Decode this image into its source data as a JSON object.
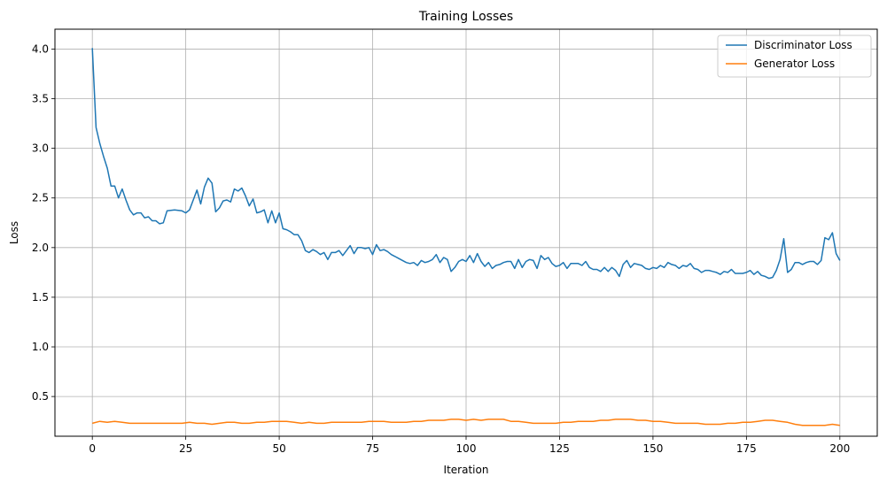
{
  "chart_data": {
    "type": "line",
    "title": "Training Losses",
    "xlabel": "Iteration",
    "ylabel": "Loss",
    "xlim": [
      -10,
      210
    ],
    "ylim": [
      0.1,
      4.2
    ],
    "xticks": [
      0,
      25,
      50,
      75,
      100,
      125,
      150,
      175,
      200
    ],
    "yticks": [
      0.5,
      1.0,
      1.5,
      2.0,
      2.5,
      3.0,
      3.5,
      4.0
    ],
    "xtick_labels": [
      "0",
      "25",
      "50",
      "75",
      "100",
      "125",
      "150",
      "175",
      "200"
    ],
    "ytick_labels": [
      "0.5",
      "1.0",
      "1.5",
      "2.0",
      "2.5",
      "3.0",
      "3.5",
      "4.0"
    ],
    "grid": true,
    "legend_position": "top-right",
    "series": [
      {
        "name": "Discriminator Loss",
        "color": "#1f77b4",
        "points": [
          [
            0,
            4.01
          ],
          [
            1,
            3.21
          ],
          [
            2,
            3.05
          ],
          [
            3,
            2.92
          ],
          [
            4,
            2.8
          ],
          [
            5,
            2.62
          ],
          [
            6,
            2.62
          ],
          [
            7,
            2.5
          ],
          [
            8,
            2.59
          ],
          [
            9,
            2.48
          ],
          [
            10,
            2.38
          ],
          [
            11,
            2.33
          ],
          [
            12,
            2.35
          ],
          [
            13,
            2.35
          ],
          [
            14,
            2.3
          ],
          [
            15,
            2.31
          ],
          [
            16,
            2.27
          ],
          [
            17,
            2.27
          ],
          [
            18,
            2.24
          ],
          [
            19,
            2.25
          ],
          [
            20,
            2.37
          ],
          [
            22,
            2.38
          ],
          [
            24,
            2.37
          ],
          [
            25,
            2.35
          ],
          [
            26,
            2.38
          ],
          [
            27,
            2.48
          ],
          [
            28,
            2.58
          ],
          [
            29,
            2.44
          ],
          [
            30,
            2.61
          ],
          [
            31,
            2.7
          ],
          [
            32,
            2.65
          ],
          [
            33,
            2.36
          ],
          [
            34,
            2.4
          ],
          [
            35,
            2.47
          ],
          [
            36,
            2.48
          ],
          [
            37,
            2.46
          ],
          [
            38,
            2.59
          ],
          [
            39,
            2.57
          ],
          [
            40,
            2.6
          ],
          [
            41,
            2.52
          ],
          [
            42,
            2.42
          ],
          [
            43,
            2.49
          ],
          [
            44,
            2.35
          ],
          [
            45,
            2.36
          ],
          [
            46,
            2.38
          ],
          [
            47,
            2.25
          ],
          [
            48,
            2.37
          ],
          [
            49,
            2.25
          ],
          [
            50,
            2.35
          ],
          [
            51,
            2.19
          ],
          [
            52,
            2.18
          ],
          [
            53,
            2.16
          ],
          [
            54,
            2.13
          ],
          [
            55,
            2.13
          ],
          [
            56,
            2.07
          ],
          [
            57,
            1.97
          ],
          [
            58,
            1.95
          ],
          [
            59,
            1.98
          ],
          [
            60,
            1.96
          ],
          [
            61,
            1.93
          ],
          [
            62,
            1.95
          ],
          [
            63,
            1.88
          ],
          [
            64,
            1.95
          ],
          [
            65,
            1.95
          ],
          [
            66,
            1.97
          ],
          [
            67,
            1.92
          ],
          [
            68,
            1.97
          ],
          [
            69,
            2.02
          ],
          [
            70,
            1.94
          ],
          [
            71,
            2.0
          ],
          [
            72,
            2.0
          ],
          [
            73,
            1.99
          ],
          [
            74,
            2.0
          ],
          [
            75,
            1.93
          ],
          [
            76,
            2.03
          ],
          [
            77,
            1.97
          ],
          [
            78,
            1.98
          ],
          [
            79,
            1.96
          ],
          [
            80,
            1.93
          ],
          [
            81,
            1.91
          ],
          [
            82,
            1.89
          ],
          [
            83,
            1.87
          ],
          [
            84,
            1.85
          ],
          [
            85,
            1.84
          ],
          [
            86,
            1.85
          ],
          [
            87,
            1.82
          ],
          [
            88,
            1.87
          ],
          [
            89,
            1.85
          ],
          [
            90,
            1.86
          ],
          [
            91,
            1.88
          ],
          [
            92,
            1.93
          ],
          [
            93,
            1.85
          ],
          [
            94,
            1.9
          ],
          [
            95,
            1.88
          ],
          [
            96,
            1.76
          ],
          [
            97,
            1.8
          ],
          [
            98,
            1.86
          ],
          [
            99,
            1.88
          ],
          [
            100,
            1.86
          ],
          [
            101,
            1.92
          ],
          [
            102,
            1.85
          ],
          [
            103,
            1.94
          ],
          [
            104,
            1.86
          ],
          [
            105,
            1.81
          ],
          [
            106,
            1.85
          ],
          [
            107,
            1.79
          ],
          [
            108,
            1.82
          ],
          [
            109,
            1.83
          ],
          [
            110,
            1.85
          ],
          [
            111,
            1.86
          ],
          [
            112,
            1.86
          ],
          [
            113,
            1.79
          ],
          [
            114,
            1.88
          ],
          [
            115,
            1.8
          ],
          [
            116,
            1.86
          ],
          [
            117,
            1.88
          ],
          [
            118,
            1.87
          ],
          [
            119,
            1.79
          ],
          [
            120,
            1.92
          ],
          [
            121,
            1.88
          ],
          [
            122,
            1.9
          ],
          [
            123,
            1.84
          ],
          [
            124,
            1.81
          ],
          [
            125,
            1.82
          ],
          [
            126,
            1.85
          ],
          [
            127,
            1.79
          ],
          [
            128,
            1.84
          ],
          [
            129,
            1.84
          ],
          [
            130,
            1.84
          ],
          [
            131,
            1.82
          ],
          [
            132,
            1.86
          ],
          [
            133,
            1.8
          ],
          [
            134,
            1.78
          ],
          [
            135,
            1.78
          ],
          [
            136,
            1.76
          ],
          [
            137,
            1.8
          ],
          [
            138,
            1.76
          ],
          [
            139,
            1.8
          ],
          [
            140,
            1.77
          ],
          [
            141,
            1.71
          ],
          [
            142,
            1.83
          ],
          [
            143,
            1.87
          ],
          [
            144,
            1.8
          ],
          [
            145,
            1.84
          ],
          [
            146,
            1.83
          ],
          [
            147,
            1.82
          ],
          [
            148,
            1.79
          ],
          [
            149,
            1.78
          ],
          [
            150,
            1.8
          ],
          [
            151,
            1.79
          ],
          [
            152,
            1.82
          ],
          [
            153,
            1.8
          ],
          [
            154,
            1.85
          ],
          [
            155,
            1.83
          ],
          [
            156,
            1.82
          ],
          [
            157,
            1.79
          ],
          [
            158,
            1.82
          ],
          [
            159,
            1.81
          ],
          [
            160,
            1.84
          ],
          [
            161,
            1.79
          ],
          [
            162,
            1.78
          ],
          [
            163,
            1.75
          ],
          [
            164,
            1.77
          ],
          [
            165,
            1.77
          ],
          [
            166,
            1.76
          ],
          [
            167,
            1.75
          ],
          [
            168,
            1.73
          ],
          [
            169,
            1.76
          ],
          [
            170,
            1.75
          ],
          [
            171,
            1.78
          ],
          [
            172,
            1.74
          ],
          [
            173,
            1.74
          ],
          [
            174,
            1.74
          ],
          [
            175,
            1.75
          ],
          [
            176,
            1.77
          ],
          [
            177,
            1.73
          ],
          [
            178,
            1.76
          ],
          [
            179,
            1.72
          ],
          [
            180,
            1.71
          ],
          [
            181,
            1.69
          ],
          [
            182,
            1.7
          ],
          [
            183,
            1.77
          ],
          [
            184,
            1.88
          ],
          [
            185,
            2.09
          ],
          [
            186,
            1.75
          ],
          [
            187,
            1.78
          ],
          [
            188,
            1.85
          ],
          [
            189,
            1.85
          ],
          [
            190,
            1.83
          ],
          [
            191,
            1.85
          ],
          [
            192,
            1.86
          ],
          [
            193,
            1.86
          ],
          [
            194,
            1.83
          ],
          [
            195,
            1.87
          ],
          [
            196,
            2.1
          ],
          [
            197,
            2.08
          ],
          [
            198,
            2.15
          ],
          [
            199,
            1.94
          ],
          [
            200,
            1.87
          ]
        ]
      },
      {
        "name": "Generator Loss",
        "color": "#ff7f0e",
        "points": [
          [
            0,
            0.23
          ],
          [
            2,
            0.25
          ],
          [
            4,
            0.24
          ],
          [
            6,
            0.25
          ],
          [
            8,
            0.24
          ],
          [
            10,
            0.23
          ],
          [
            12,
            0.23
          ],
          [
            14,
            0.23
          ],
          [
            16,
            0.23
          ],
          [
            18,
            0.23
          ],
          [
            20,
            0.23
          ],
          [
            22,
            0.23
          ],
          [
            24,
            0.23
          ],
          [
            26,
            0.24
          ],
          [
            28,
            0.23
          ],
          [
            30,
            0.23
          ],
          [
            32,
            0.22
          ],
          [
            34,
            0.23
          ],
          [
            36,
            0.24
          ],
          [
            38,
            0.24
          ],
          [
            40,
            0.23
          ],
          [
            42,
            0.23
          ],
          [
            44,
            0.24
          ],
          [
            46,
            0.24
          ],
          [
            48,
            0.25
          ],
          [
            50,
            0.25
          ],
          [
            52,
            0.25
          ],
          [
            54,
            0.24
          ],
          [
            56,
            0.23
          ],
          [
            58,
            0.24
          ],
          [
            60,
            0.23
          ],
          [
            62,
            0.23
          ],
          [
            64,
            0.24
          ],
          [
            66,
            0.24
          ],
          [
            68,
            0.24
          ],
          [
            70,
            0.24
          ],
          [
            72,
            0.24
          ],
          [
            74,
            0.25
          ],
          [
            76,
            0.25
          ],
          [
            78,
            0.25
          ],
          [
            80,
            0.24
          ],
          [
            82,
            0.24
          ],
          [
            84,
            0.24
          ],
          [
            86,
            0.25
          ],
          [
            88,
            0.25
          ],
          [
            90,
            0.26
          ],
          [
            92,
            0.26
          ],
          [
            94,
            0.26
          ],
          [
            96,
            0.27
          ],
          [
            98,
            0.27
          ],
          [
            100,
            0.26
          ],
          [
            102,
            0.27
          ],
          [
            104,
            0.26
          ],
          [
            106,
            0.27
          ],
          [
            108,
            0.27
          ],
          [
            110,
            0.27
          ],
          [
            112,
            0.25
          ],
          [
            114,
            0.25
          ],
          [
            116,
            0.24
          ],
          [
            118,
            0.23
          ],
          [
            120,
            0.23
          ],
          [
            122,
            0.23
          ],
          [
            124,
            0.23
          ],
          [
            126,
            0.24
          ],
          [
            128,
            0.24
          ],
          [
            130,
            0.25
          ],
          [
            132,
            0.25
          ],
          [
            134,
            0.25
          ],
          [
            136,
            0.26
          ],
          [
            138,
            0.26
          ],
          [
            140,
            0.27
          ],
          [
            142,
            0.27
          ],
          [
            144,
            0.27
          ],
          [
            146,
            0.26
          ],
          [
            148,
            0.26
          ],
          [
            150,
            0.25
          ],
          [
            152,
            0.25
          ],
          [
            154,
            0.24
          ],
          [
            156,
            0.23
          ],
          [
            158,
            0.23
          ],
          [
            160,
            0.23
          ],
          [
            162,
            0.23
          ],
          [
            164,
            0.22
          ],
          [
            166,
            0.22
          ],
          [
            168,
            0.22
          ],
          [
            170,
            0.23
          ],
          [
            172,
            0.23
          ],
          [
            174,
            0.24
          ],
          [
            176,
            0.24
          ],
          [
            178,
            0.25
          ],
          [
            180,
            0.26
          ],
          [
            182,
            0.26
          ],
          [
            184,
            0.25
          ],
          [
            186,
            0.24
          ],
          [
            188,
            0.22
          ],
          [
            190,
            0.21
          ],
          [
            192,
            0.21
          ],
          [
            194,
            0.21
          ],
          [
            196,
            0.21
          ],
          [
            198,
            0.22
          ],
          [
            200,
            0.21
          ]
        ]
      }
    ]
  }
}
